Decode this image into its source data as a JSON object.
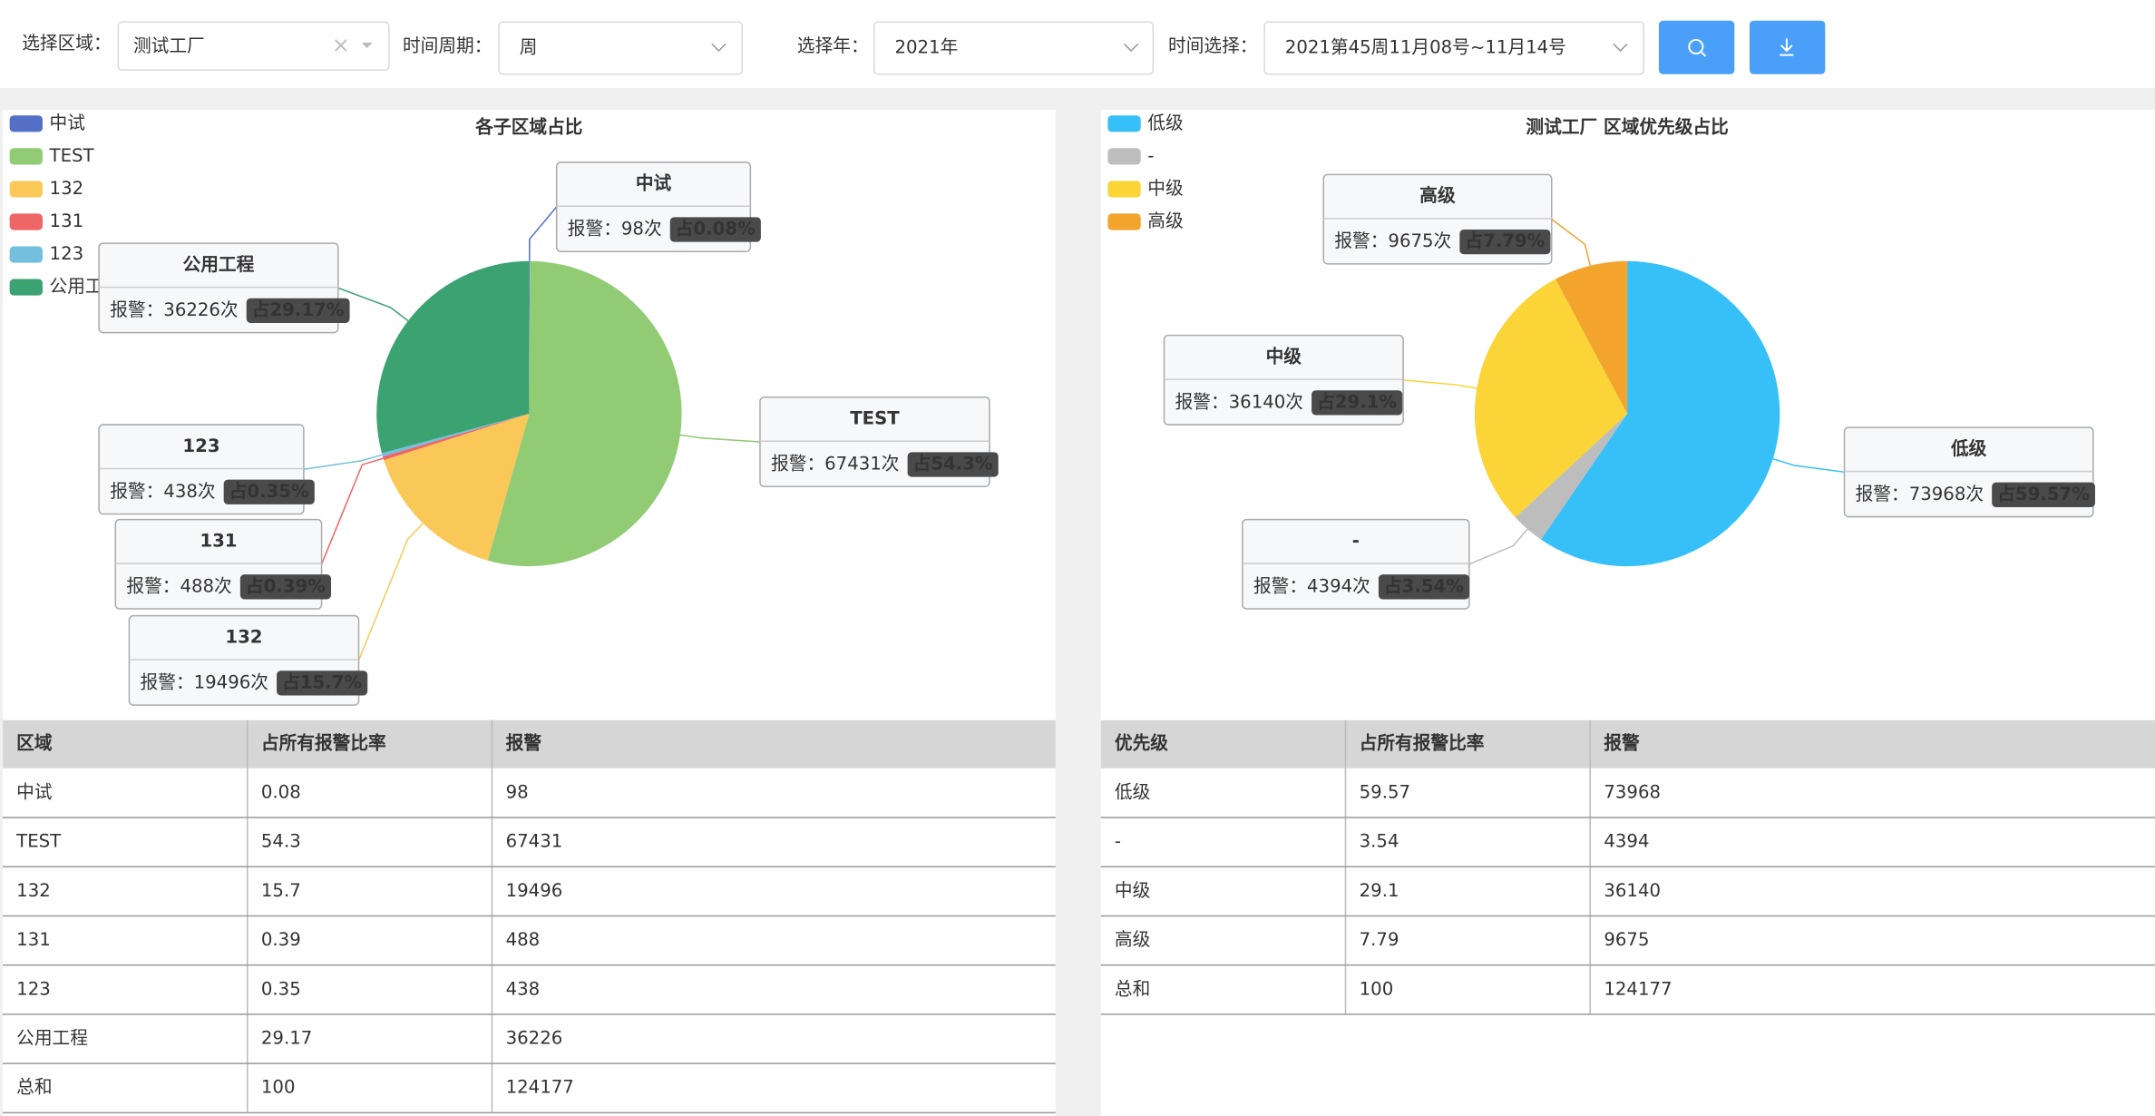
{
  "filters": {
    "region_label": "选择区域：",
    "region": "测试工厂",
    "period_label": "时间周期：",
    "period": "周",
    "year_label": "选择年：",
    "year": "2021年",
    "time_label": "时间选择：",
    "time": "2021第45周11月08号~11月14号"
  },
  "chart_data": [
    {
      "type": "pie",
      "title": "各子区域占比",
      "categories": [
        "中试",
        "TEST",
        "132",
        "131",
        "123",
        "公用工程"
      ],
      "values": [
        98,
        67431,
        19496,
        488,
        438,
        36226
      ],
      "value_labels": [
        "报警：98次",
        "报警：67431次",
        "报警：19496次",
        "报警：488次",
        "报警：438次",
        "报警：36226次"
      ],
      "shares": [
        0.08,
        54.3,
        15.7,
        0.39,
        0.35,
        29.17
      ],
      "share_labels": [
        "占0.08%",
        "占54.3%",
        "占15.7%",
        "占0.39%",
        "占0.35%",
        "占29.17%"
      ],
      "colors": [
        "#5470c6",
        "#91cc75",
        "#fac858",
        "#ee6666",
        "#73c0de",
        "#3ba272"
      ],
      "legend": "top-left"
    },
    {
      "type": "pie",
      "title": "测试工厂 区域优先级占比",
      "categories": [
        "低级",
        "-",
        "中级",
        "高级"
      ],
      "values": [
        73968,
        4394,
        36140,
        9675
      ],
      "value_labels": [
        "报警：73968次",
        "报警：4394次",
        "报警：36140次",
        "报警：9675次"
      ],
      "shares": [
        59.57,
        3.54,
        29.1,
        7.79
      ],
      "share_labels": [
        "占59.57%",
        "占3.54%",
        "占29.1%",
        "占7.79%"
      ],
      "colors": [
        "#37c0f7",
        "#bdbdbd",
        "#fbd437",
        "#f3a42c"
      ],
      "legend": "top-left"
    }
  ],
  "tables": [
    {
      "columns": [
        "区域",
        "占所有报警比率",
        "报警"
      ],
      "rows": [
        [
          "中试",
          0.08,
          98
        ],
        [
          "TEST",
          54.3,
          67431
        ],
        [
          "132",
          15.7,
          19496
        ],
        [
          "131",
          0.39,
          488
        ],
        [
          "123",
          0.35,
          438
        ],
        [
          "公用工程",
          29.17,
          36226
        ],
        [
          "总和",
          100,
          124177
        ]
      ]
    },
    {
      "columns": [
        "优先级",
        "占所有报警比率",
        "报警"
      ],
      "rows": [
        [
          "低级",
          59.57,
          73968
        ],
        [
          "-",
          3.54,
          4394
        ],
        [
          "中级",
          29.1,
          36140
        ],
        [
          "高级",
          7.79,
          9675
        ],
        [
          "总和",
          100,
          124177
        ]
      ]
    }
  ]
}
